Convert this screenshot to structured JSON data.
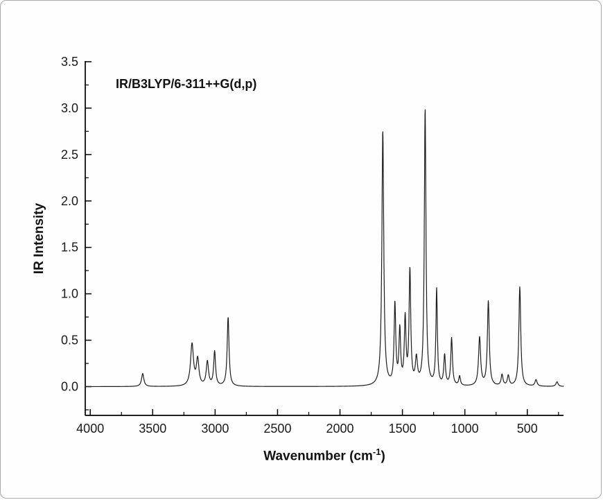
{
  "figure": {
    "annotation": "IR/B3LYP/6-311++G(d,p)",
    "ylabel": "IR Intensity",
    "xlabel_prefix": "Wavenumber (cm",
    "xlabel_sup": "-1",
    "xlabel_suffix": ")"
  },
  "chart_data": {
    "type": "line",
    "title": "IR/B3LYP/6-311++G(d,p)",
    "xlabel": "Wavenumber (cm^-1)",
    "ylabel": "IR Intensity",
    "legend": "none",
    "grid": false,
    "line_color": "#1c1c1c",
    "axis_color": "#000000",
    "x_axis": {
      "left_value": 4040,
      "right_value": 210,
      "reversed": true,
      "major_ticks": [
        4000,
        3500,
        3000,
        2500,
        2000,
        1500,
        1000,
        500
      ],
      "minor_step": 250
    },
    "y_axis": {
      "min": -0.31,
      "max": 3.5,
      "major_tick_labels": [
        "0.0",
        "0.5",
        "1.0",
        "1.5",
        "2.0",
        "2.5",
        "3.0",
        "3.5"
      ],
      "minor_step": 0.25
    },
    "peak_width_unit": "cm-1 (Lorentzian half-width)",
    "peaks": [
      {
        "wavenumber": 3580,
        "intensity": 0.14,
        "width": 11
      },
      {
        "wavenumber": 3185,
        "intensity": 0.45,
        "width": 14
      },
      {
        "wavenumber": 3140,
        "intensity": 0.28,
        "width": 12
      },
      {
        "wavenumber": 3062,
        "intensity": 0.26,
        "width": 11
      },
      {
        "wavenumber": 3004,
        "intensity": 0.37,
        "width": 9
      },
      {
        "wavenumber": 2896,
        "intensity": 0.74,
        "width": 9
      },
      {
        "wavenumber": 1657,
        "intensity": 2.74,
        "width": 9
      },
      {
        "wavenumber": 1560,
        "intensity": 0.86,
        "width": 8
      },
      {
        "wavenumber": 1521,
        "intensity": 0.58,
        "width": 8
      },
      {
        "wavenumber": 1478,
        "intensity": 0.7,
        "width": 8
      },
      {
        "wavenumber": 1440,
        "intensity": 1.22,
        "width": 8
      },
      {
        "wavenumber": 1388,
        "intensity": 0.27,
        "width": 10
      },
      {
        "wavenumber": 1318,
        "intensity": 2.97,
        "width": 8
      },
      {
        "wavenumber": 1226,
        "intensity": 1.03,
        "width": 7
      },
      {
        "wavenumber": 1162,
        "intensity": 0.32,
        "width": 8
      },
      {
        "wavenumber": 1106,
        "intensity": 0.51,
        "width": 8
      },
      {
        "wavenumber": 1042,
        "intensity": 0.1,
        "width": 8
      },
      {
        "wavenumber": 882,
        "intensity": 0.52,
        "width": 10
      },
      {
        "wavenumber": 812,
        "intensity": 0.91,
        "width": 9
      },
      {
        "wavenumber": 702,
        "intensity": 0.12,
        "width": 9
      },
      {
        "wavenumber": 652,
        "intensity": 0.11,
        "width": 9
      },
      {
        "wavenumber": 560,
        "intensity": 1.07,
        "width": 9
      },
      {
        "wavenumber": 430,
        "intensity": 0.07,
        "width": 10
      },
      {
        "wavenumber": 262,
        "intensity": 0.05,
        "width": 10
      }
    ]
  }
}
